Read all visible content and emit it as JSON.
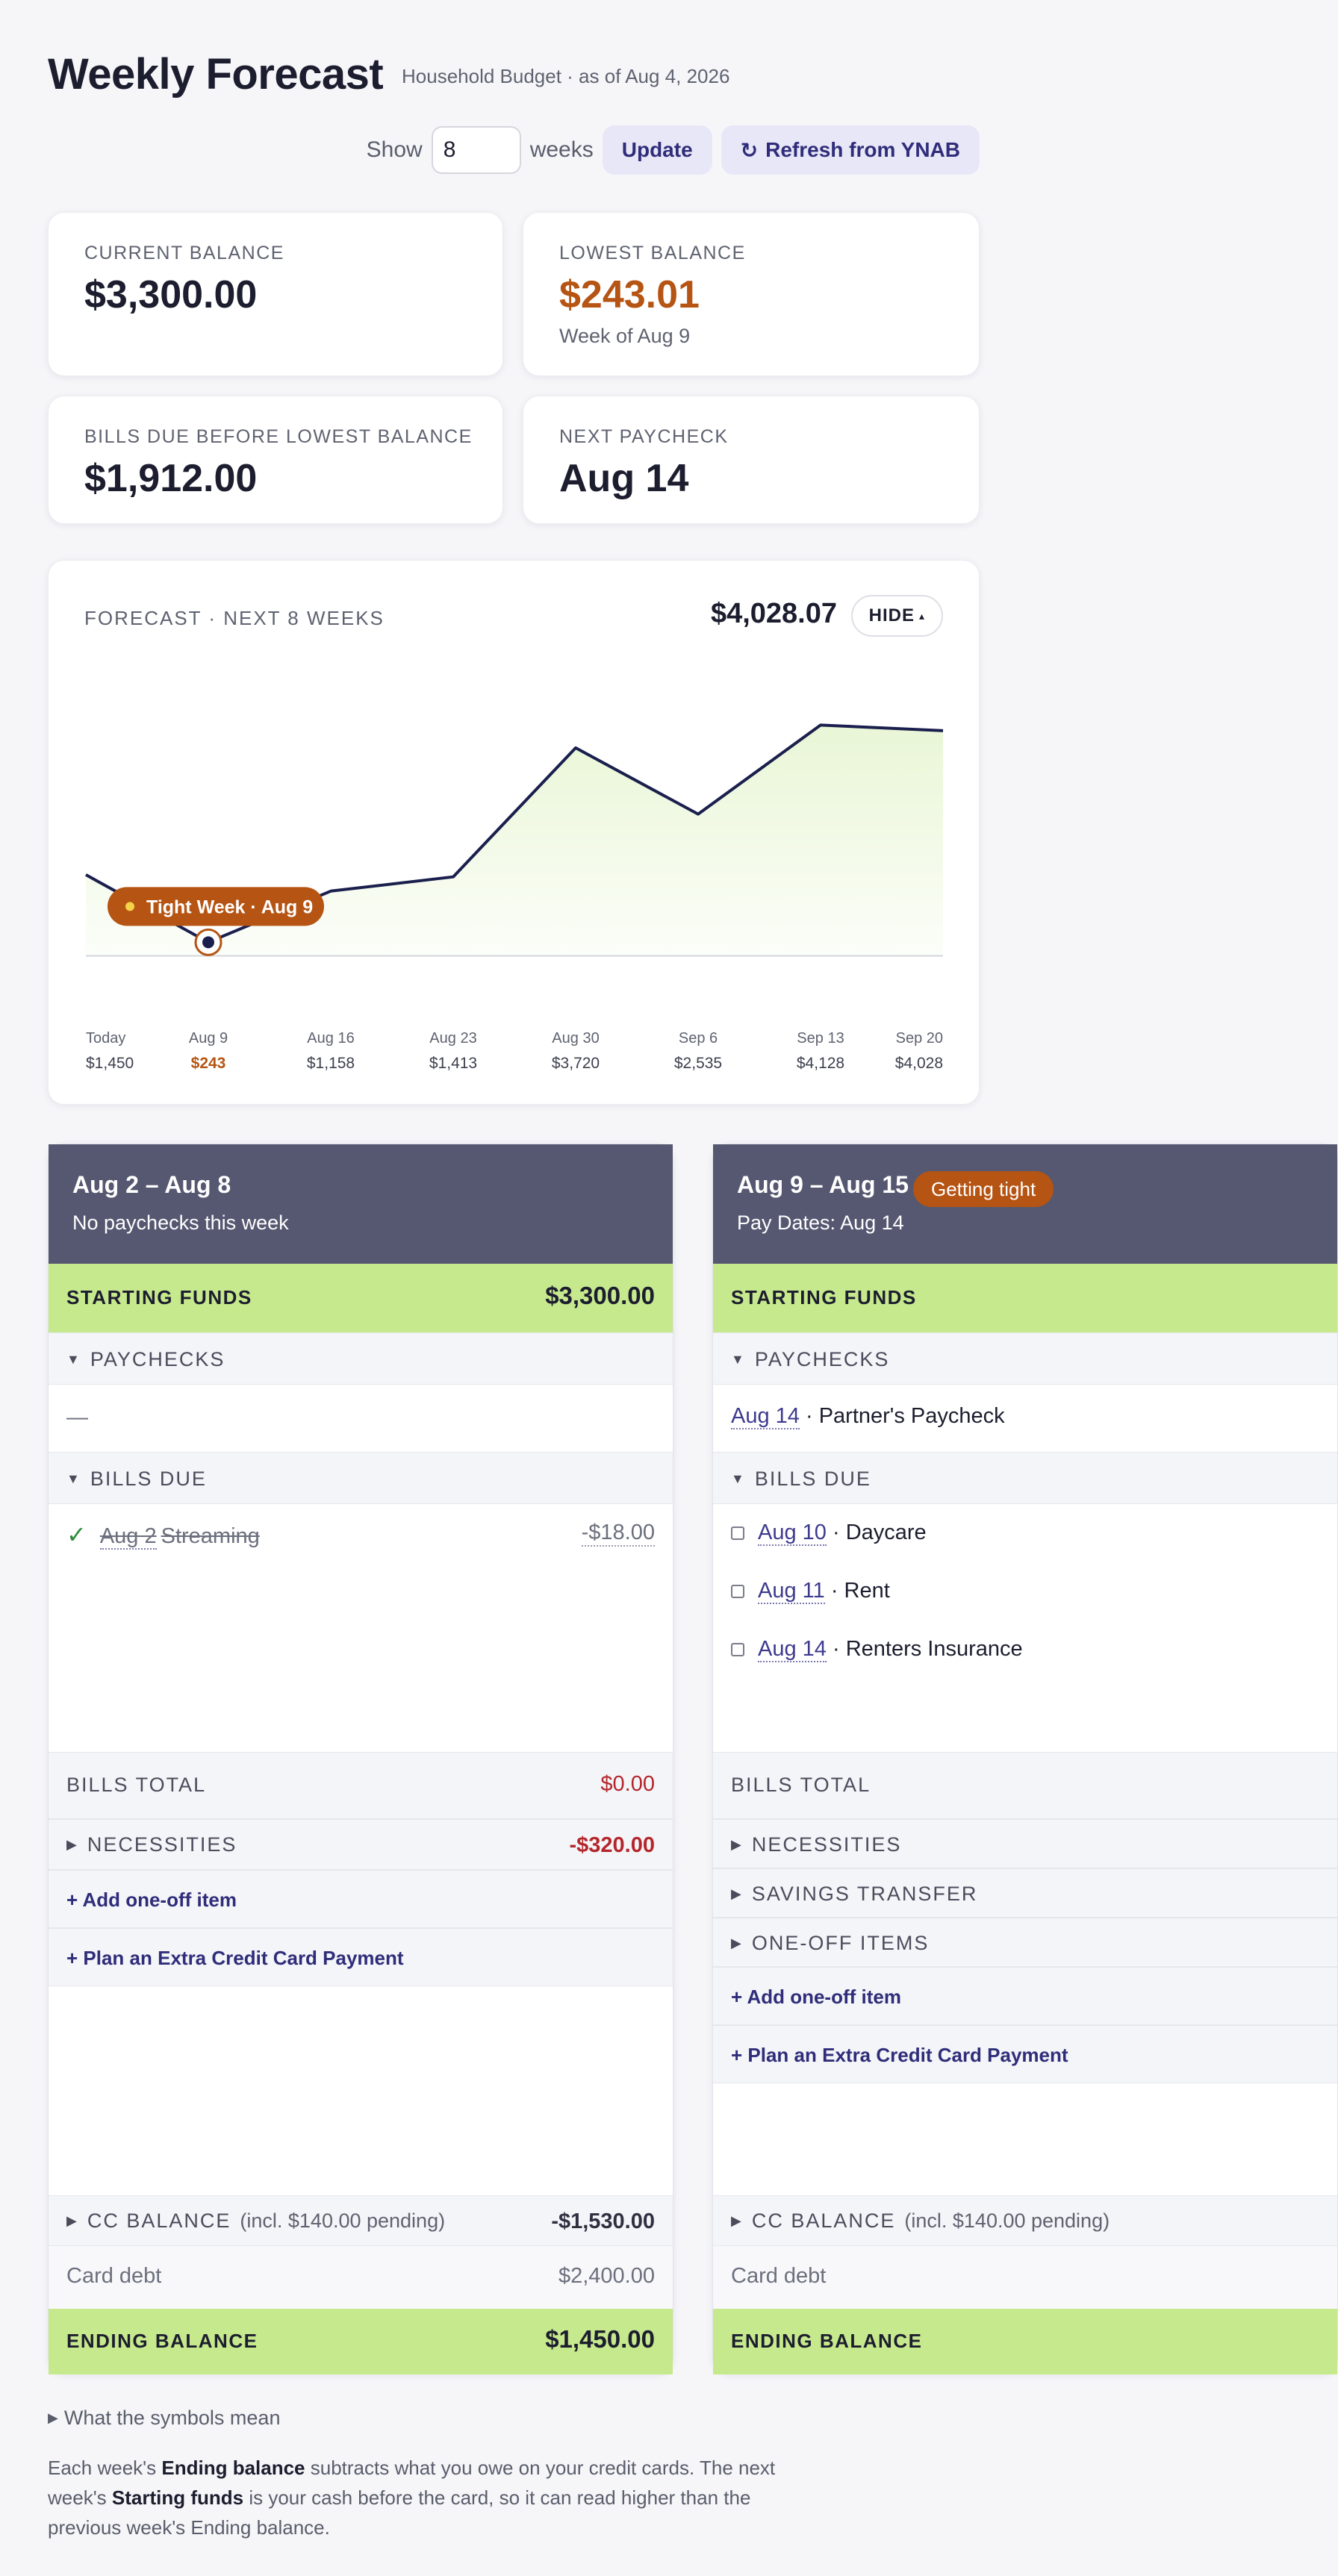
{
  "header": {
    "title": "Weekly Forecast",
    "subtitle": "Household Budget · as of Aug 4, 2026"
  },
  "controls": {
    "show_label": "Show",
    "weeks_value": "8",
    "weeks_label": "weeks",
    "update_label": "Update",
    "refresh_label": "Refresh from YNAB",
    "refresh_icon": "↻"
  },
  "stats": {
    "current_balance_label": "CURRENT BALANCE",
    "current_balance_value": "$3,300.00",
    "lowest_balance_label": "LOWEST BALANCE",
    "lowest_balance_value": "$243.01",
    "lowest_balance_note": "Week of Aug 9",
    "bills_due_label": "BILLS DUE BEFORE LOWEST BALANCE",
    "bills_due_value": "$1,912.00",
    "next_paycheck_label": "NEXT PAYCHECK",
    "next_paycheck_value": "Aug 14"
  },
  "forecast": {
    "title": "FORECAST · NEXT 8 WEEKS",
    "hover_value": "$4,028.07",
    "hide_label": "HIDE",
    "hide_icon": "▴",
    "tight_week_label": "Tight Week · Aug 9"
  },
  "chart_data": {
    "type": "area",
    "categories": [
      "Today",
      "Aug 9",
      "Aug 16",
      "Aug 23",
      "Aug 30",
      "Sep 6",
      "Sep 13",
      "Sep 20"
    ],
    "value_labels": [
      "$1,450",
      "$243",
      "$1,158",
      "$1,413",
      "$3,720",
      "$2,535",
      "$4,128",
      "$4,028"
    ],
    "values": [
      1450,
      243,
      1158,
      1413,
      3720,
      2535,
      4128,
      4028
    ],
    "highlight_index": 1,
    "ylim": [
      -300,
      4800
    ],
    "line_color": "#1a1f4d",
    "fill_color": "#e9f6d6",
    "highlight_color": "#b55413"
  },
  "weeks": [
    {
      "range": "Aug 2 – Aug 8",
      "sub": "No paychecks this week",
      "starting_funds_label": "STARTING FUNDS",
      "starting_funds_value": "$3,300.00",
      "paychecks_label": "PAYCHECKS",
      "paychecks_empty": "—",
      "bills_due_label": "BILLS DUE",
      "bills": [
        {
          "check": "✓",
          "date": "Aug 2",
          "name": "Streaming",
          "amount": "-$18.00"
        }
      ],
      "bills_total_label": "BILLS TOTAL",
      "bills_total_value": "$0.00",
      "necessities_label": "NECESSITIES",
      "necessities_value": "-$320.00",
      "add_one_off": "+ Add one-off item",
      "plan_extra": "+ Plan an Extra Credit Card Payment",
      "cc_balance_label": "CC BALANCE",
      "cc_balance_note": "(incl. $140.00 pending)",
      "cc_balance_value": "-$1,530.00",
      "card_debt_label": "Card debt",
      "card_debt_value": "$2,400.00",
      "ending_label": "ENDING BALANCE",
      "ending_value": "$1,450.00"
    },
    {
      "range": "Aug 9 – Aug 15",
      "badge": "Getting tight",
      "sub": "Pay Dates: Aug 14",
      "starting_funds_label": "STARTING FUNDS",
      "paychecks_label": "PAYCHECKS",
      "paycheck_date": "Aug 14",
      "paycheck_name": " · Partner's Paycheck",
      "bills_due_label": "BILLS DUE",
      "bills": [
        {
          "date": "Aug 10",
          "name": " · Daycare"
        },
        {
          "date": "Aug 11",
          "name": " · Rent"
        },
        {
          "date": "Aug 14",
          "name": " · Renters Insurance"
        }
      ],
      "bills_total_label": "BILLS TOTAL",
      "necessities_label": "NECESSITIES",
      "savings_label": "SAVINGS TRANSFER",
      "one_off_label": "ONE-OFF ITEMS",
      "add_one_off": "+ Add one-off item",
      "plan_extra": "+ Plan an Extra Credit Card Payment",
      "cc_balance_label": "CC BALANCE",
      "cc_balance_note": "(incl. $140.00 pending)",
      "card_debt_label": "Card debt",
      "ending_label": "ENDING BALANCE"
    }
  ],
  "legend_toggle": "What the symbols mean",
  "footnote": {
    "p1": "Each week's ",
    "b1": "Ending balance",
    "p2": " subtracts what you owe on your credit cards. The next week's ",
    "b2": "Starting funds",
    "p3": " is your cash before the card, so it can read higher than the previous week's Ending balance."
  }
}
